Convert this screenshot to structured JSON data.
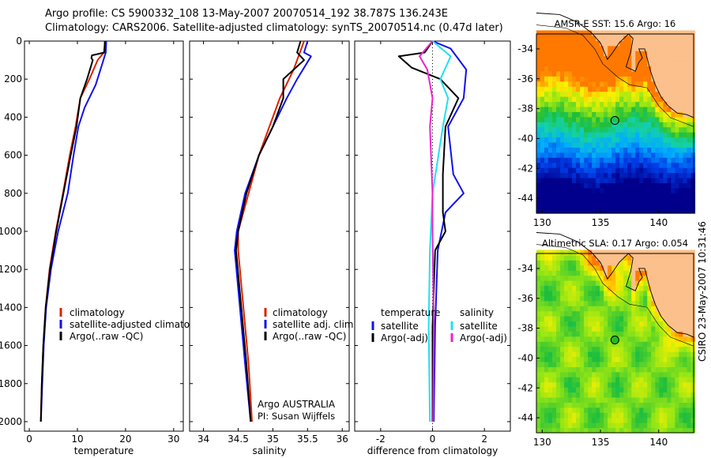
{
  "header": {
    "line1": "Argo profile: CS 5900332_108 13-May-2007 20070514_192 38.787S 136.243E",
    "line2": "Climatology: CARS2006. Satellite-adjusted climatology: synTS_20070514.nc (0.47d later)"
  },
  "stamp": "CSIRO 23-May-2007 10:31:46",
  "colors": {
    "red": "#dd2200",
    "blue": "#1010ee",
    "black": "#000000",
    "cyan": "#22e0ee",
    "magenta": "#ee22cc",
    "land": "#fbc08c"
  },
  "chart_data": [
    {
      "type": "line",
      "id": "temperature",
      "xlabel": "temperature",
      "xlim": [
        -1,
        32
      ],
      "ylim": [
        2050,
        0
      ],
      "xticks": [
        0,
        10,
        20,
        30
      ],
      "yticks": [
        0,
        200,
        400,
        600,
        800,
        1000,
        1200,
        1400,
        1600,
        1800,
        2000
      ],
      "legend": [
        "climatology",
        "satellite-adjusted climatology",
        "Argo(..raw -QC)"
      ],
      "series": [
        {
          "name": "climatology",
          "color": "red",
          "points": [
            [
              15.8,
              0
            ],
            [
              15.5,
              60
            ],
            [
              14.2,
              100
            ],
            [
              12.5,
              200
            ],
            [
              10.6,
              300
            ],
            [
              9.6,
              450
            ],
            [
              8.4,
              600
            ],
            [
              7.0,
              800
            ],
            [
              5.5,
              1000
            ],
            [
              4.2,
              1200
            ],
            [
              3.4,
              1400
            ],
            [
              2.9,
              1600
            ],
            [
              2.6,
              1800
            ],
            [
              2.4,
              2000
            ]
          ]
        },
        {
          "name": "satellite-adjusted climatology",
          "color": "blue",
          "points": [
            [
              16.0,
              0
            ],
            [
              15.9,
              60
            ],
            [
              14.8,
              150
            ],
            [
              13.8,
              230
            ],
            [
              11.5,
              350
            ],
            [
              10.2,
              450
            ],
            [
              9.2,
              600
            ],
            [
              8.0,
              800
            ],
            [
              6.0,
              1000
            ],
            [
              4.5,
              1200
            ],
            [
              3.5,
              1400
            ],
            [
              3.0,
              1600
            ],
            [
              2.7,
              1800
            ],
            [
              2.4,
              2000
            ]
          ]
        },
        {
          "name": "Argo(..raw -QC)",
          "color": "black",
          "points": [
            [
              15.7,
              0
            ],
            [
              15.6,
              60
            ],
            [
              13.0,
              75
            ],
            [
              12.9,
              90
            ],
            [
              13.2,
              100
            ],
            [
              12.0,
              200
            ],
            [
              10.6,
              300
            ],
            [
              9.8,
              450
            ],
            [
              8.6,
              600
            ],
            [
              7.1,
              800
            ],
            [
              5.6,
              1000
            ],
            [
              4.3,
              1200
            ],
            [
              3.4,
              1400
            ],
            [
              2.9,
              1600
            ],
            [
              2.6,
              1800
            ],
            [
              2.4,
              2000
            ]
          ]
        }
      ]
    },
    {
      "type": "line",
      "id": "salinity",
      "xlabel": "salinity",
      "xlim": [
        33.8,
        36.1
      ],
      "ylim": [
        2050,
        0
      ],
      "xticks": [
        34,
        34.5,
        35,
        35.5,
        36
      ],
      "xticklabels": [
        "34",
        "34.5",
        "35",
        "35.5",
        "36"
      ],
      "legend": [
        "climatology",
        "satellite adj. clim.",
        "Argo(..raw -QC)"
      ],
      "annotation": [
        "Argo AUSTRALIA",
        "PI: Susan Wijffels"
      ],
      "series": [
        {
          "name": "climatology",
          "color": "red",
          "points": [
            [
              35.45,
              0
            ],
            [
              35.3,
              150
            ],
            [
              35.1,
              300
            ],
            [
              34.95,
              450
            ],
            [
              34.8,
              600
            ],
            [
              34.65,
              800
            ],
            [
              34.5,
              1000
            ],
            [
              34.5,
              1100
            ],
            [
              34.55,
              1300
            ],
            [
              34.6,
              1500
            ],
            [
              34.65,
              1700
            ],
            [
              34.7,
              2000
            ]
          ]
        },
        {
          "name": "satellite adj. clim.",
          "color": "blue",
          "points": [
            [
              35.5,
              0
            ],
            [
              35.45,
              60
            ],
            [
              35.55,
              80
            ],
            [
              35.35,
              200
            ],
            [
              35.2,
              300
            ],
            [
              35.0,
              450
            ],
            [
              34.8,
              600
            ],
            [
              34.6,
              800
            ],
            [
              34.48,
              1000
            ],
            [
              34.45,
              1100
            ],
            [
              34.5,
              1300
            ],
            [
              34.55,
              1500
            ],
            [
              34.6,
              1700
            ],
            [
              34.68,
              2000
            ]
          ]
        },
        {
          "name": "Argo(..raw -QC)",
          "color": "black",
          "points": [
            [
              35.4,
              0
            ],
            [
              35.35,
              60
            ],
            [
              35.45,
              100
            ],
            [
              35.15,
              200
            ],
            [
              35.15,
              300
            ],
            [
              35.0,
              450
            ],
            [
              34.8,
              600
            ],
            [
              34.62,
              800
            ],
            [
              34.5,
              1000
            ],
            [
              34.47,
              1100
            ],
            [
              34.52,
              1300
            ],
            [
              34.57,
              1500
            ],
            [
              34.62,
              1700
            ],
            [
              34.68,
              2000
            ]
          ]
        }
      ]
    },
    {
      "type": "line",
      "id": "difference",
      "xlabel": "difference from climatology",
      "xlim": [
        -3,
        3
      ],
      "ylim": [
        2050,
        0
      ],
      "xticks": [
        -2,
        0,
        2
      ],
      "legend_titles": [
        "temperature",
        "salinity"
      ],
      "legend": [
        "satellite",
        "Argo(-adj)",
        "satellite",
        "Argo(-adj)"
      ],
      "series": [
        {
          "name": "temperature satellite",
          "color": "blue",
          "points": [
            [
              0,
              0
            ],
            [
              0.7,
              40
            ],
            [
              1.3,
              150
            ],
            [
              1.2,
              300
            ],
            [
              0.6,
              450
            ],
            [
              0.8,
              700
            ],
            [
              1.2,
              800
            ],
            [
              0.5,
              900
            ],
            [
              0.2,
              1100
            ],
            [
              0.1,
              1500
            ],
            [
              0.05,
              2000
            ]
          ]
        },
        {
          "name": "temperature Argo(-adj)",
          "color": "black",
          "points": [
            [
              0,
              0
            ],
            [
              -0.3,
              60
            ],
            [
              -1.3,
              80
            ],
            [
              -0.8,
              140
            ],
            [
              0.3,
              200
            ],
            [
              1.0,
              300
            ],
            [
              0.5,
              450
            ],
            [
              0.4,
              700
            ],
            [
              0.4,
              900
            ],
            [
              0.5,
              1000
            ],
            [
              0.1,
              1100
            ],
            [
              0,
              1500
            ],
            [
              0,
              2000
            ]
          ]
        },
        {
          "name": "salinity satellite",
          "color": "cyan",
          "points": [
            [
              0,
              0
            ],
            [
              0.7,
              80
            ],
            [
              0.3,
              200
            ],
            [
              0.6,
              300
            ],
            [
              0.4,
              450
            ],
            [
              0.0,
              800
            ],
            [
              -0.1,
              1100
            ],
            [
              -0.15,
              1500
            ],
            [
              -0.1,
              2000
            ]
          ]
        },
        {
          "name": "salinity Argo(-adj)",
          "color": "magenta",
          "points": [
            [
              0,
              0
            ],
            [
              -0.5,
              80
            ],
            [
              -0.2,
              150
            ],
            [
              0.0,
              300
            ],
            [
              -0.1,
              450
            ],
            [
              0.0,
              800
            ],
            [
              0.0,
              1000
            ],
            [
              0.05,
              1500
            ],
            [
              0.02,
              2000
            ]
          ]
        }
      ]
    },
    {
      "type": "heatmap",
      "id": "sst-map",
      "title": "AMSR-E SST: 15.6 Argo: 16",
      "xlim": [
        129.5,
        143
      ],
      "ylim": [
        -45,
        -33
      ],
      "xticks": [
        130,
        135,
        140
      ],
      "yticks": [
        -34,
        -36,
        -38,
        -40,
        -42,
        -44
      ],
      "marker": {
        "lon": 136.24,
        "lat": -38.79,
        "fill": "none"
      }
    },
    {
      "type": "heatmap",
      "id": "sla-map",
      "title": "Altimetric SLA: 0.17 Argo: 0.054",
      "xlim": [
        129.5,
        143
      ],
      "ylim": [
        -45,
        -33
      ],
      "xticks": [
        130,
        135,
        140
      ],
      "yticks": [
        -34,
        -36,
        -38,
        -40,
        -42,
        -44
      ],
      "marker": {
        "lon": 136.24,
        "lat": -38.79,
        "fill": "#22bb22"
      }
    }
  ]
}
